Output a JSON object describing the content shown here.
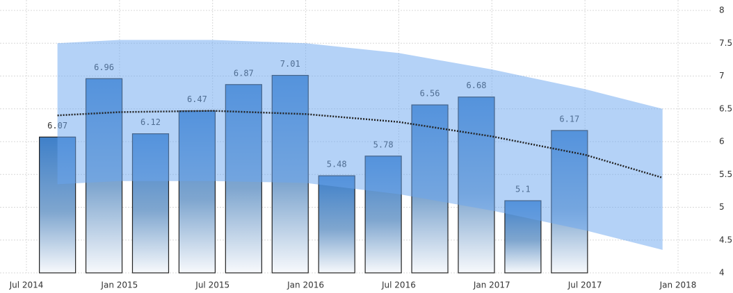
{
  "chart_data": {
    "type": "bar",
    "x": [
      "2014-09",
      "2014-12",
      "2015-03",
      "2015-06",
      "2015-09",
      "2015-12",
      "2016-03",
      "2016-06",
      "2016-09",
      "2016-12",
      "2017-03",
      "2017-06"
    ],
    "values": [
      6.07,
      6.96,
      6.12,
      6.47,
      6.87,
      7.01,
      5.48,
      5.78,
      6.56,
      6.68,
      5.1,
      6.17
    ],
    "color": "#3f80c9",
    "xlim": [
      "2014-07",
      "2018-01"
    ],
    "xticks": [
      {
        "value": "2014-07",
        "label": "Jul 2014"
      },
      {
        "value": "2015-01",
        "label": "Jan 2015"
      },
      {
        "value": "2015-07",
        "label": "Jul 2015"
      },
      {
        "value": "2016-01",
        "label": "Jan 2016"
      },
      {
        "value": "2016-07",
        "label": "Jul 2016"
      },
      {
        "value": "2017-01",
        "label": "Jan 2017"
      },
      {
        "value": "2017-07",
        "label": "Jul 2017"
      },
      {
        "value": "2018-01",
        "label": "Jan 2018"
      }
    ],
    "ylim": [
      4,
      8
    ],
    "yticks": [
      4,
      4.5,
      5,
      5.5,
      6,
      6.5,
      7,
      7.5,
      8
    ],
    "grid": true,
    "trend": {
      "x": [
        "2014-09",
        "2015-01",
        "2015-07",
        "2016-01",
        "2016-07",
        "2017-01",
        "2017-07",
        "2017-12"
      ],
      "values": [
        6.4,
        6.45,
        6.47,
        6.42,
        6.3,
        6.08,
        5.8,
        5.45
      ]
    },
    "band": {
      "x": [
        "2014-09",
        "2015-01",
        "2015-07",
        "2016-01",
        "2016-07",
        "2017-01",
        "2017-07",
        "2017-12"
      ],
      "upper": [
        7.5,
        7.55,
        7.55,
        7.5,
        7.35,
        7.1,
        6.8,
        6.5
      ],
      "lower": [
        5.35,
        5.4,
        5.4,
        5.37,
        5.2,
        4.95,
        4.65,
        4.35
      ]
    }
  }
}
